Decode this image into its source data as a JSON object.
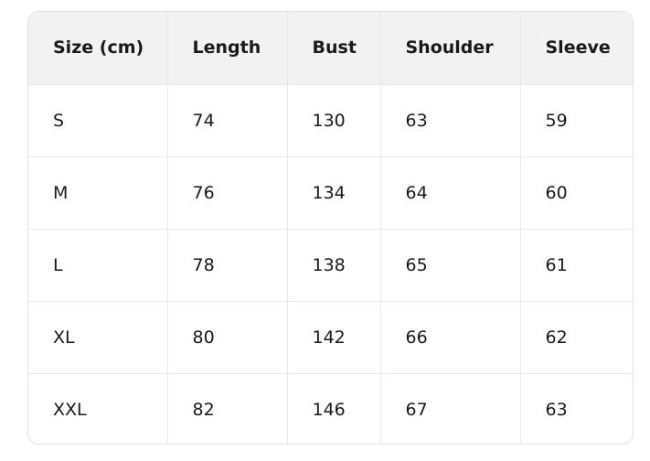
{
  "table": {
    "headers": [
      "Size (cm)",
      "Length",
      "Bust",
      "Shoulder",
      "Sleeve"
    ],
    "rows": [
      [
        "S",
        "74",
        "130",
        "63",
        "59"
      ],
      [
        "M",
        "76",
        "134",
        "64",
        "60"
      ],
      [
        "L",
        "78",
        "138",
        "65",
        "61"
      ],
      [
        "XL",
        "80",
        "142",
        "66",
        "62"
      ],
      [
        "XXL",
        "82",
        "146",
        "67",
        "63"
      ]
    ]
  },
  "colors": {
    "header_bg": "#f2f2f2",
    "border": "#e3e3e3"
  }
}
